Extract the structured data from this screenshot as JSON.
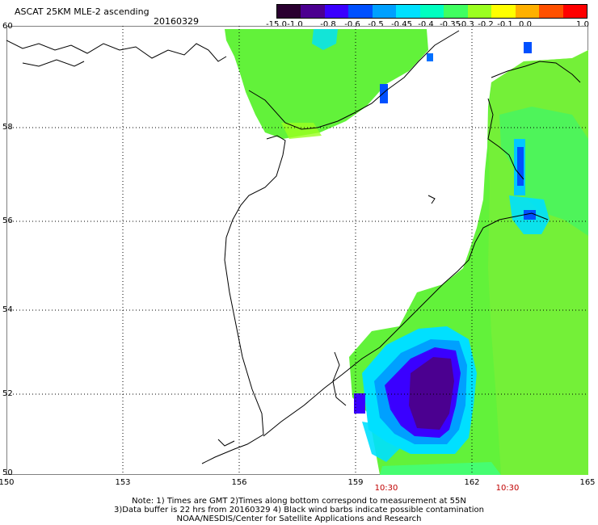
{
  "title": "ASCAT 25KM MLE-2 ascending",
  "date": "20160329",
  "colorbar": {
    "labels": [
      "-15.0",
      "-1.0",
      "-0.8",
      "-0.6",
      "-0.5",
      "-0.45",
      "-0.4",
      "-0.35",
      "-0.3",
      "-0.2",
      "-0.1",
      "0.0",
      "1.0"
    ],
    "colors": [
      "#2a0030",
      "#4b0090",
      "#3a00ff",
      "#0050ff",
      "#00a0ff",
      "#00e0ff",
      "#00ffc0",
      "#40ff60",
      "#9bff20",
      "#ffff00",
      "#ffb000",
      "#ff5000",
      "#ff0000"
    ]
  },
  "lat_labels": [
    "60",
    "58",
    "56",
    "54",
    "52",
    "50"
  ],
  "lon_labels": [
    "150",
    "153",
    "156",
    "159",
    "162",
    "165"
  ],
  "time_labels": [
    "10:30",
    "10:30"
  ],
  "notes": [
    "Note: 1) Times are GMT 2)Times along bottom correspond to measurement at 55N",
    "3)Data buffer is 22 hrs from 20160329 4) Black wind barbs indicate possible contamination",
    "NOAA/NESDIS/Center for Satellite Applications and Research"
  ]
}
